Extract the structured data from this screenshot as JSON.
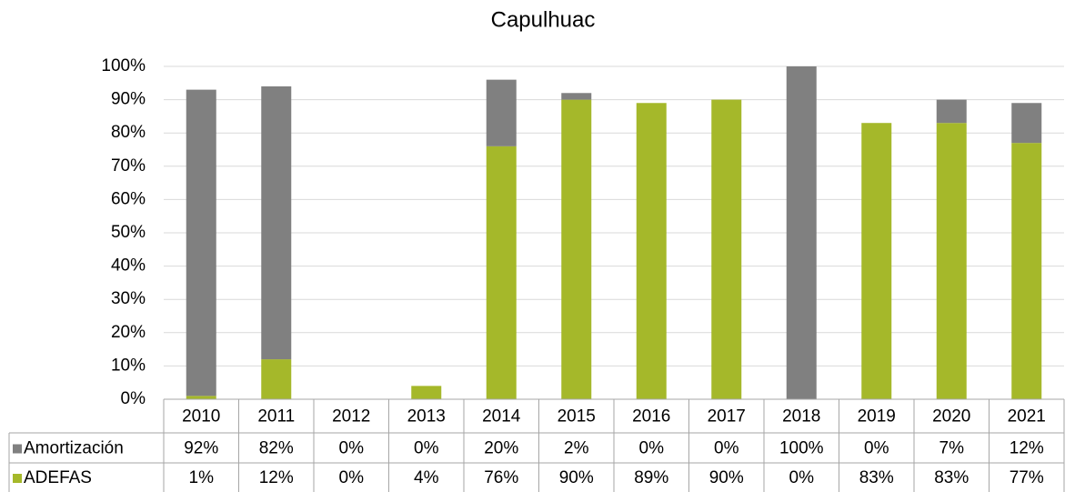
{
  "chart_data": {
    "type": "stacked_bar",
    "title": "Capulhuac",
    "categories": [
      "2010",
      "2011",
      "2012",
      "2013",
      "2014",
      "2015",
      "2016",
      "2017",
      "2018",
      "2019",
      "2020",
      "2021"
    ],
    "series": [
      {
        "name": "Amortización",
        "color": "#808080",
        "values": [
          92,
          82,
          0,
          0,
          20,
          2,
          0,
          0,
          100,
          0,
          7,
          12
        ],
        "value_labels": [
          "92%",
          "82%",
          "0%",
          "0%",
          "20%",
          "2%",
          "0%",
          "0%",
          "100%",
          "0%",
          "7%",
          "12%"
        ]
      },
      {
        "name": "ADEFAS",
        "color": "#a5b82a",
        "values": [
          1,
          12,
          0,
          4,
          76,
          90,
          89,
          90,
          0,
          83,
          83,
          77
        ],
        "value_labels": [
          "1%",
          "12%",
          "0%",
          "4%",
          "76%",
          "90%",
          "89%",
          "90%",
          "0%",
          "83%",
          "83%",
          "77%"
        ]
      }
    ],
    "ylim": [
      0,
      100
    ],
    "yticks": [
      {
        "value": 0,
        "label": "0%"
      },
      {
        "value": 10,
        "label": "10%"
      },
      {
        "value": 20,
        "label": "20%"
      },
      {
        "value": 30,
        "label": "30%"
      },
      {
        "value": 40,
        "label": "40%"
      },
      {
        "value": 50,
        "label": "50%"
      },
      {
        "value": 60,
        "label": "60%"
      },
      {
        "value": 70,
        "label": "70%"
      },
      {
        "value": 80,
        "label": "80%"
      },
      {
        "value": 90,
        "label": "90%"
      },
      {
        "value": 100,
        "label": "100%"
      }
    ],
    "grid": true
  }
}
